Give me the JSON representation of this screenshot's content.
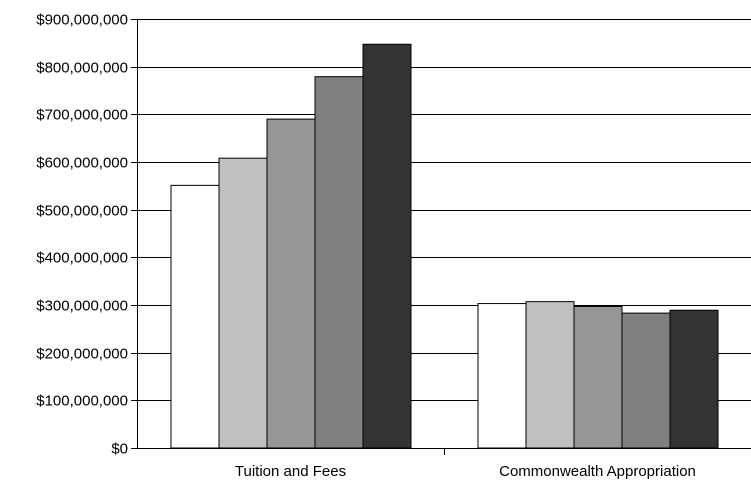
{
  "chart_data": {
    "type": "bar",
    "categories": [
      "Tuition and Fees",
      "Commonwealth Appropriation"
    ],
    "series": [
      {
        "values": [
          551000000,
          303000000
        ],
        "color": "#ffffff"
      },
      {
        "values": [
          608000000,
          307000000
        ],
        "color": "#c0c0c0"
      },
      {
        "values": [
          690000000,
          297000000
        ],
        "color": "#969696"
      },
      {
        "values": [
          779000000,
          283000000
        ],
        "color": "#808080"
      },
      {
        "values": [
          847000000,
          289000000
        ],
        "color": "#333333"
      }
    ],
    "ylim": [
      0,
      900000000
    ],
    "yticks": [
      0,
      100000000,
      200000000,
      300000000,
      400000000,
      500000000,
      600000000,
      700000000,
      800000000,
      900000000
    ],
    "ytick_labels": [
      "$0",
      "$100,000,000",
      "$200,000,000",
      "$300,000,000",
      "$400,000,000",
      "$500,000,000",
      "$600,000,000",
      "$700,000,000",
      "$800,000,000",
      "$900,000,000"
    ],
    "grid": true,
    "legend": "none"
  }
}
